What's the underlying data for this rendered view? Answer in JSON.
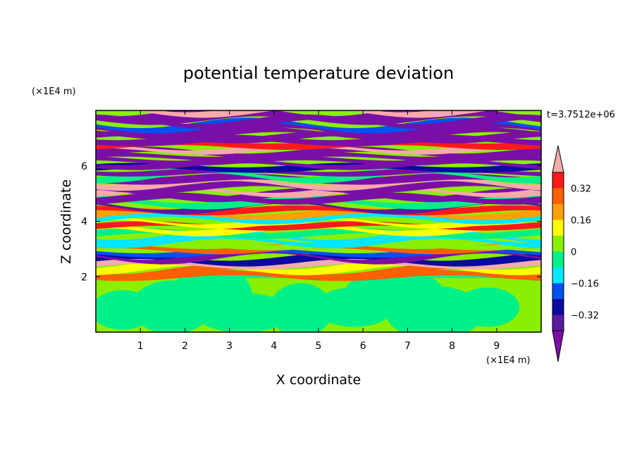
{
  "chart_data": {
    "type": "heatmap",
    "title": "potential temperature deviation",
    "xlabel": "X coordinate",
    "ylabel": "Z coordinate",
    "x_unit": "(×1E4 m)",
    "y_unit": "(×1E4 m)",
    "time_label": "t=3.7512e+06",
    "xlim": [
      0,
      10
    ],
    "ylim": [
      0,
      8
    ],
    "x_ticks": [
      1,
      2,
      3,
      4,
      5,
      6,
      7,
      8,
      9
    ],
    "y_ticks": [
      2,
      4,
      6
    ],
    "x_tick_labels": [
      "1",
      "2",
      "3",
      "4",
      "5",
      "6",
      "7",
      "8",
      "9"
    ],
    "y_tick_labels": [
      "2",
      "4",
      "6"
    ],
    "colorbar": {
      "levels": [
        -0.4,
        -0.32,
        -0.24,
        -0.16,
        -0.08,
        0,
        0.08,
        0.16,
        0.24,
        0.32,
        0.4
      ],
      "labels": [
        "0.32",
        "0.16",
        "0",
        "−0.16",
        "−0.32"
      ],
      "label_values": [
        0.32,
        0.16,
        0,
        -0.16,
        -0.32
      ],
      "colors": [
        "#7a0fa8",
        "#5c1aa0",
        "#0a0aa0",
        "#0050f0",
        "#00e8ff",
        "#00f088",
        "#88f000",
        "#ffff00",
        "#ffa000",
        "#ff6000",
        "#ff1a1a",
        "#f6aaaa"
      ],
      "extend": "both"
    }
  }
}
